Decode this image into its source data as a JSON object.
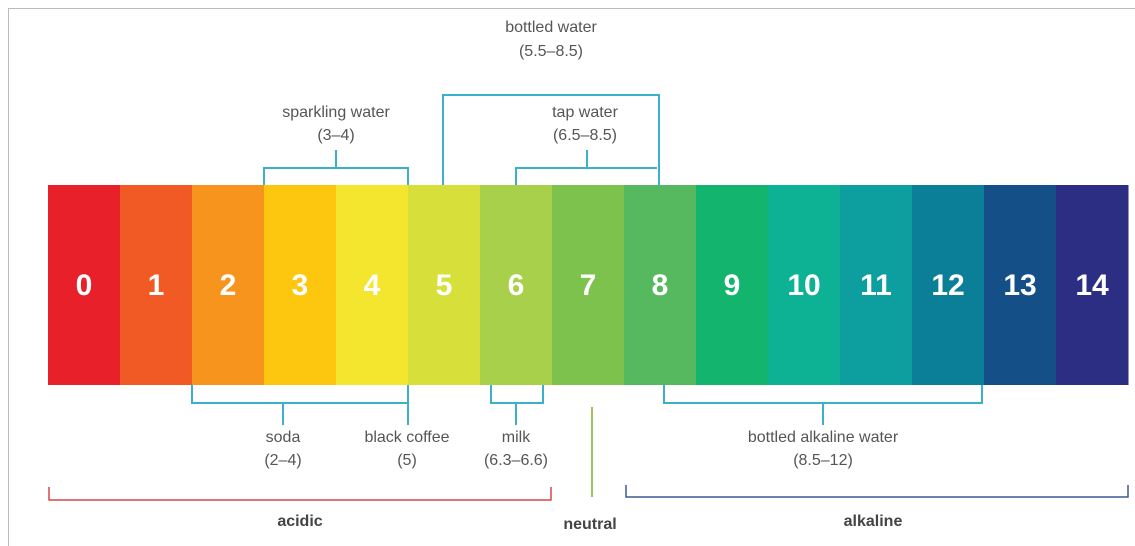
{
  "scale": [
    {
      "label": "0",
      "color": "#e8202a"
    },
    {
      "label": "1",
      "color": "#f15a24"
    },
    {
      "label": "2",
      "color": "#f7941d"
    },
    {
      "label": "3",
      "color": "#fdc70f"
    },
    {
      "label": "4",
      "color": "#f4e52e"
    },
    {
      "label": "5",
      "color": "#d7e03b"
    },
    {
      "label": "6",
      "color": "#a8d04b"
    },
    {
      "label": "7",
      "color": "#7cc24c"
    },
    {
      "label": "8",
      "color": "#57b95f"
    },
    {
      "label": "9",
      "color": "#12b46e"
    },
    {
      "label": "10",
      "color": "#0db193"
    },
    {
      "label": "11",
      "color": "#0d9ea0"
    },
    {
      "label": "12",
      "color": "#0b7f98"
    },
    {
      "label": "13",
      "color": "#144f87"
    },
    {
      "label": "14",
      "color": "#2b2e83"
    }
  ],
  "top_annotations": [
    {
      "name": "bottled water",
      "range": "(5.5–8.5)"
    },
    {
      "name": "sparkling water",
      "range": "(3–4)"
    },
    {
      "name": "tap water",
      "range": "(6.5–8.5)"
    }
  ],
  "bottom_annotations": [
    {
      "name": "soda",
      "range": "(2–4)"
    },
    {
      "name": "black coffee",
      "range": "(5)"
    },
    {
      "name": "milk",
      "range": "(6.3–6.6)"
    },
    {
      "name": "bottled alkaline water",
      "range": "(8.5–12)"
    }
  ],
  "regions": [
    {
      "label": "acidic",
      "color": "#d9454a"
    },
    {
      "label": "neutral",
      "color": "#9cc45a"
    },
    {
      "label": "alkaline",
      "color": "#3a5a94"
    }
  ]
}
